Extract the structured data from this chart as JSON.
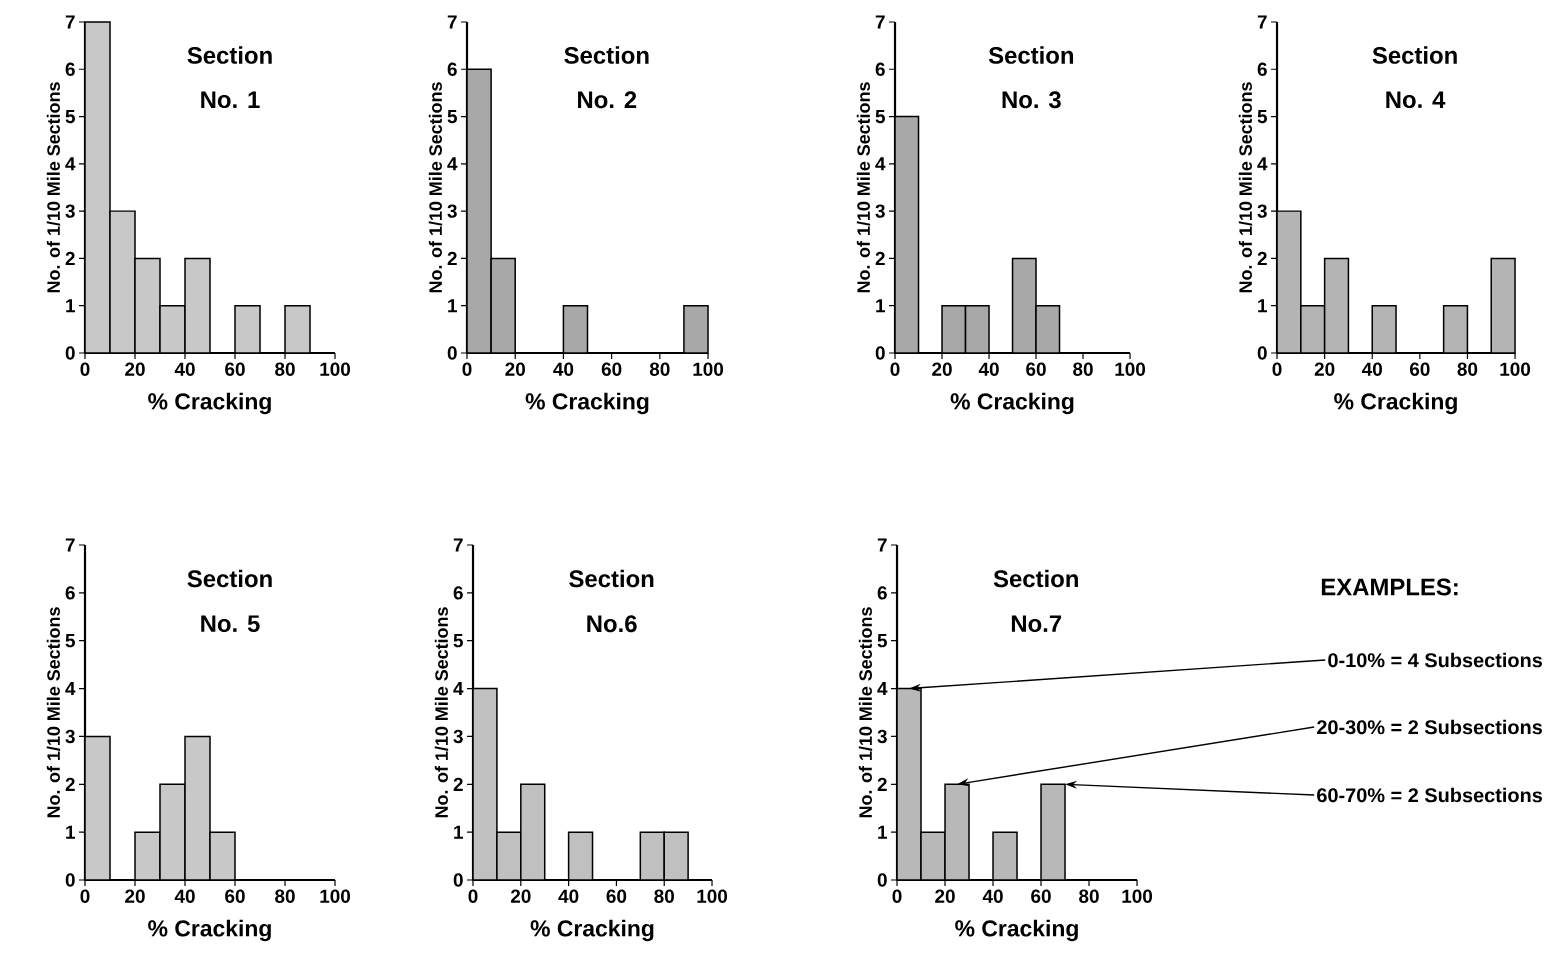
{
  "chart_data": [
    {
      "type": "histogram",
      "title": "Section",
      "subtitle": "No. 1",
      "xlabel": "% Cracking",
      "ylabel": "No. of 1/10 Mile Sections",
      "bins": [
        0,
        10,
        20,
        30,
        40,
        50,
        60,
        70,
        80,
        90,
        100
      ],
      "values": [
        7,
        3,
        2,
        1,
        2,
        0,
        1,
        0,
        1,
        0
      ],
      "color": "#c8c8c8",
      "xlim": [
        0,
        100
      ],
      "ylim": [
        0,
        7
      ],
      "xticks": [
        0,
        20,
        40,
        60,
        80,
        100
      ],
      "yticks": [
        0,
        1,
        2,
        3,
        4,
        5,
        6,
        7
      ]
    },
    {
      "type": "histogram",
      "title": "Section",
      "subtitle": "No. 2",
      "xlabel": "% Cracking",
      "ylabel": "No. of 1/10 Mile Sections",
      "bins": [
        0,
        10,
        20,
        30,
        40,
        50,
        60,
        70,
        80,
        90,
        100
      ],
      "values": [
        6,
        2,
        0,
        0,
        1,
        0,
        0,
        0,
        0,
        1
      ],
      "color": "#a8a8a8",
      "xlim": [
        0,
        100
      ],
      "ylim": [
        0,
        7
      ],
      "xticks": [
        0,
        20,
        40,
        60,
        80,
        100
      ],
      "yticks": [
        0,
        1,
        2,
        3,
        4,
        5,
        6,
        7
      ]
    },
    {
      "type": "histogram",
      "title": "Section",
      "subtitle": "No. 3",
      "xlabel": "% Cracking",
      "ylabel": "No. of 1/10 Mile Sections",
      "bins": [
        0,
        10,
        20,
        30,
        40,
        50,
        60,
        70,
        80,
        90,
        100
      ],
      "values": [
        5,
        0,
        1,
        1,
        0,
        2,
        1,
        0,
        0,
        0
      ],
      "color": "#a8a8a8",
      "xlim": [
        0,
        100
      ],
      "ylim": [
        0,
        7
      ],
      "xticks": [
        0,
        20,
        40,
        60,
        80,
        100
      ],
      "yticks": [
        0,
        1,
        2,
        3,
        4,
        5,
        6,
        7
      ]
    },
    {
      "type": "histogram",
      "title": "Section",
      "subtitle": "No. 4",
      "xlabel": "% Cracking",
      "ylabel": "No. of 1/10 Mile Sections",
      "bins": [
        0,
        10,
        20,
        30,
        40,
        50,
        60,
        70,
        80,
        90,
        100
      ],
      "values": [
        3,
        1,
        2,
        0,
        1,
        0,
        0,
        1,
        0,
        2
      ],
      "color": "#b4b4b4",
      "xlim": [
        0,
        100
      ],
      "ylim": [
        0,
        7
      ],
      "xticks": [
        0,
        20,
        40,
        60,
        80,
        100
      ],
      "yticks": [
        0,
        1,
        2,
        3,
        4,
        5,
        6,
        7
      ]
    },
    {
      "type": "histogram",
      "title": "Section",
      "subtitle": "No. 5",
      "xlabel": "% Cracking",
      "ylabel": "No. of 1/10 Mile Sections",
      "bins": [
        0,
        10,
        20,
        30,
        40,
        50,
        60,
        70,
        80,
        90,
        100
      ],
      "values": [
        3,
        0,
        1,
        2,
        3,
        1,
        0,
        0,
        0,
        0
      ],
      "color": "#c8c8c8",
      "xlim": [
        0,
        100
      ],
      "ylim": [
        0,
        7
      ],
      "xticks": [
        0,
        20,
        40,
        60,
        80,
        100
      ],
      "yticks": [
        0,
        1,
        2,
        3,
        4,
        5,
        6,
        7
      ]
    },
    {
      "type": "histogram",
      "title": "Section",
      "subtitle": "No.6",
      "xlabel": "% Cracking",
      "ylabel": "No. of 1/10 Mile Sections",
      "bins": [
        0,
        10,
        20,
        30,
        40,
        50,
        60,
        70,
        80,
        90,
        100
      ],
      "values": [
        4,
        1,
        2,
        0,
        1,
        0,
        0,
        1,
        1,
        0
      ],
      "color": "#c0c0c0",
      "xlim": [
        0,
        100
      ],
      "ylim": [
        0,
        7
      ],
      "xticks": [
        0,
        20,
        40,
        60,
        80,
        100
      ],
      "yticks": [
        0,
        1,
        2,
        3,
        4,
        5,
        6,
        7
      ]
    },
    {
      "type": "histogram",
      "title": "Section",
      "subtitle": "No.7",
      "xlabel": "% Cracking",
      "ylabel": "No. of 1/10 Mile Sections",
      "bins": [
        0,
        10,
        20,
        30,
        40,
        50,
        60,
        70,
        80,
        90,
        100
      ],
      "values": [
        4,
        1,
        2,
        0,
        1,
        0,
        2,
        0,
        0,
        0
      ],
      "color": "#b8b8b8",
      "xlim": [
        0,
        100
      ],
      "ylim": [
        0,
        7
      ],
      "xticks": [
        0,
        20,
        40,
        60,
        80,
        100
      ],
      "yticks": [
        0,
        1,
        2,
        3,
        4,
        5,
        6,
        7
      ],
      "annotations": [
        "EXAMPLES:",
        {
          "text": "0-10% = 4 Subsections",
          "x": 5,
          "y": 4
        },
        {
          "text": "20-30% = 2 Subsections",
          "x": 25,
          "y": 2
        },
        {
          "text": "60-70% = 2 Subsections",
          "x": 70,
          "y": 2
        }
      ]
    }
  ]
}
